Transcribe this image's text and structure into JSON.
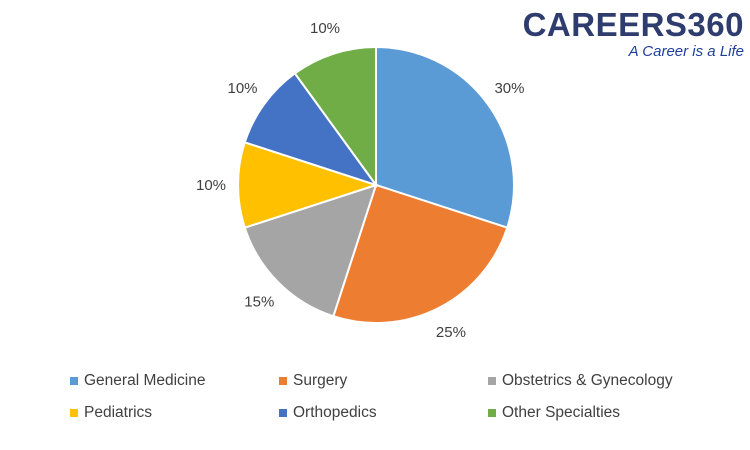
{
  "logo": {
    "main": "CAREERS360",
    "tagline": "A Career is a Life"
  },
  "chart_data": {
    "type": "pie",
    "title": "",
    "slices": [
      {
        "name": "General Medicine",
        "value": 30,
        "label": "30%",
        "color": "#5b9bd5"
      },
      {
        "name": "Surgery",
        "value": 25,
        "label": "25%",
        "color": "#ed7d31"
      },
      {
        "name": "Obstetrics & Gynecology",
        "value": 15,
        "label": "15%",
        "color": "#a5a5a5"
      },
      {
        "name": "Pediatrics",
        "value": 10,
        "label": "10%",
        "color": "#ffc000"
      },
      {
        "name": "Orthopedics",
        "value": 10,
        "label": "10%",
        "color": "#4472c4"
      },
      {
        "name": "Other Specialties",
        "value": 10,
        "label": "10%",
        "color": "#70ad47"
      }
    ],
    "legend_position": "bottom"
  }
}
